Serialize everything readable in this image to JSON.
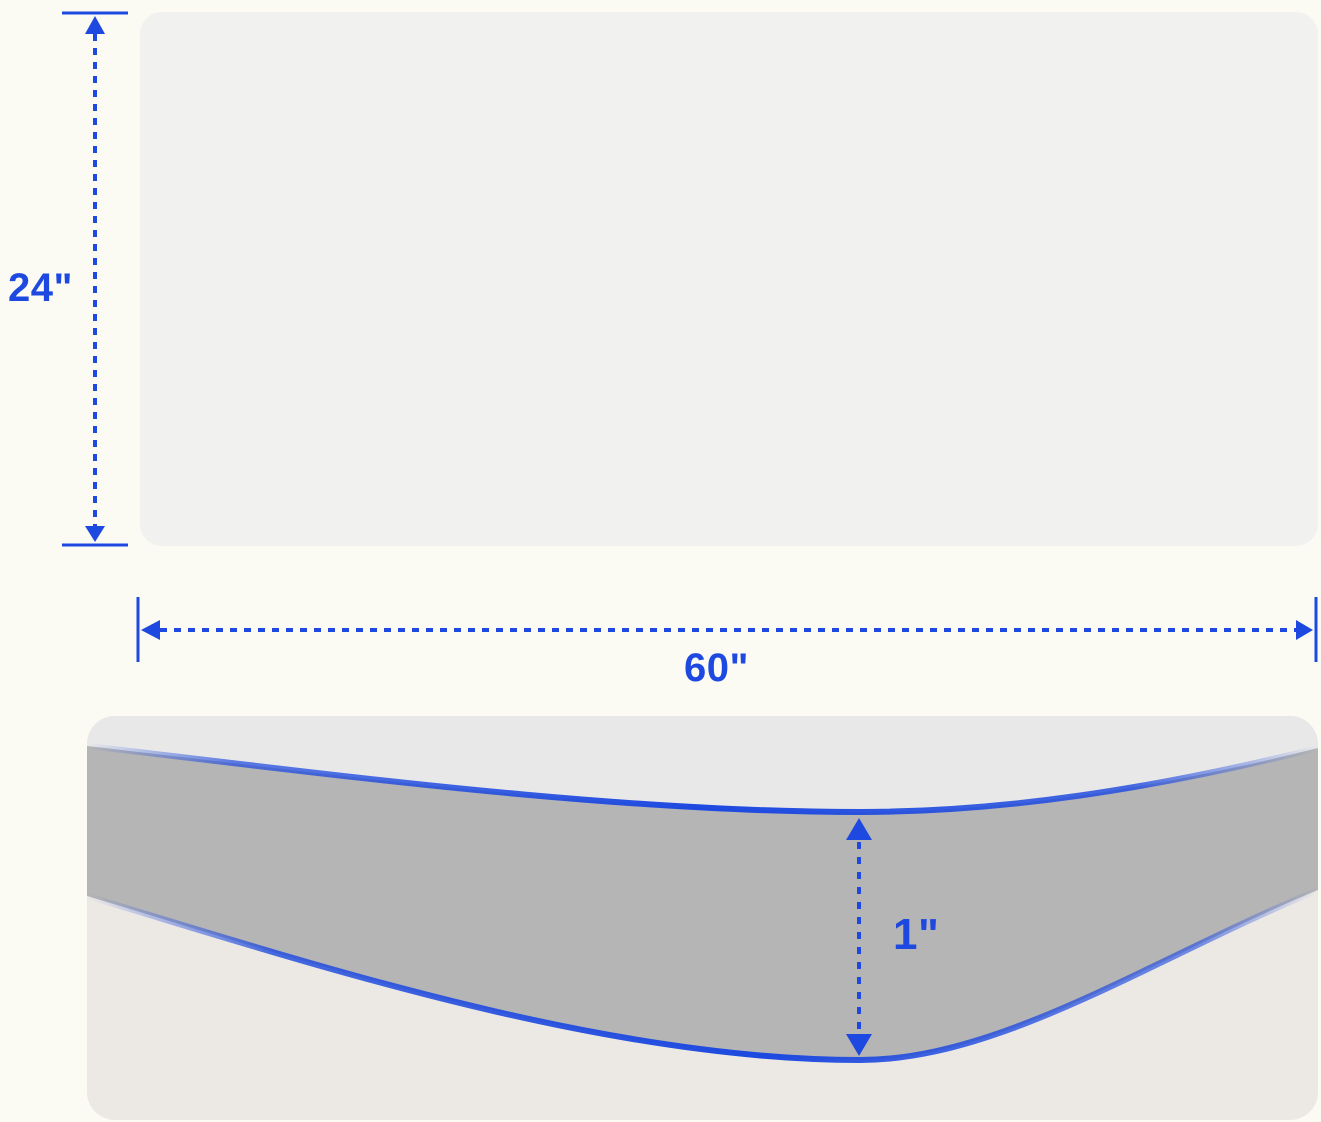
{
  "dimensions": {
    "height_label": "24\"",
    "width_label": "60\"",
    "thickness_label": "1\""
  },
  "colors": {
    "background": "#fbfaf3",
    "tabletop_top_surface": "#f1f1f0",
    "tabletop_edge": "#b5b5b5",
    "edge_view_surface": "#e8e8e8",
    "floor": "#ece9e4",
    "dimension_accent": "#1d49e0"
  }
}
